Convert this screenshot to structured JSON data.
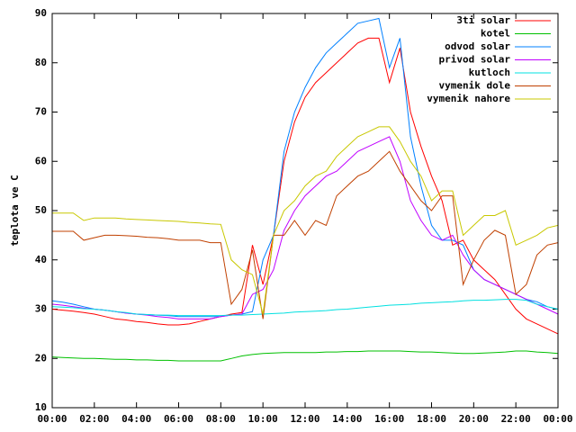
{
  "chart_data": {
    "type": "line",
    "ylabel": "teplota ve C",
    "x": [
      0,
      0.5,
      1,
      1.5,
      2,
      2.5,
      3,
      3.5,
      4,
      4.5,
      5,
      5.5,
      6,
      6.5,
      7,
      7.5,
      8,
      8.5,
      9,
      9.5,
      10,
      10.5,
      11,
      11.5,
      12,
      12.5,
      13,
      13.5,
      14,
      14.5,
      15,
      15.5,
      16,
      16.5,
      17,
      17.5,
      18,
      18.5,
      19,
      19.5,
      20,
      20.5,
      21,
      21.5,
      22,
      22.5,
      23,
      23.5,
      24
    ],
    "xlim": [
      0,
      24
    ],
    "xticks": [
      {
        "value": 0,
        "label": "00:00"
      },
      {
        "value": 2,
        "label": "02:00"
      },
      {
        "value": 4,
        "label": "04:00"
      },
      {
        "value": 6,
        "label": "06:00"
      },
      {
        "value": 8,
        "label": "08:00"
      },
      {
        "value": 10,
        "label": "10:00"
      },
      {
        "value": 12,
        "label": "12:00"
      },
      {
        "value": 14,
        "label": "14:00"
      },
      {
        "value": 16,
        "label": "16:00"
      },
      {
        "value": 18,
        "label": "18:00"
      },
      {
        "value": 20,
        "label": "20:00"
      },
      {
        "value": 22,
        "label": "22:00"
      },
      {
        "value": 24,
        "label": "00:00"
      }
    ],
    "ylim": [
      10,
      90
    ],
    "yticks": [
      10,
      20,
      30,
      40,
      50,
      60,
      70,
      80,
      90
    ],
    "grid": false,
    "legend": "top-right",
    "series": [
      {
        "name": "3ti solar",
        "color": "#ff0000",
        "values": [
          30,
          29.8,
          29.6,
          29.3,
          29,
          28.5,
          28,
          27.8,
          27.5,
          27.3,
          27,
          26.8,
          26.8,
          27,
          27.5,
          28,
          28.5,
          29,
          29.3,
          43,
          35,
          45,
          60,
          68,
          73,
          76,
          78,
          80,
          82,
          84,
          85,
          85,
          76,
          83,
          70,
          63,
          57,
          52,
          43,
          44,
          40,
          38,
          36,
          33,
          30,
          28,
          27,
          26,
          25
        ]
      },
      {
        "name": "kotel",
        "color": "#00c000",
        "values": [
          20.3,
          20.2,
          20.1,
          20,
          20,
          19.9,
          19.8,
          19.8,
          19.7,
          19.7,
          19.6,
          19.6,
          19.5,
          19.5,
          19.5,
          19.5,
          19.5,
          20,
          20.5,
          20.8,
          21,
          21.1,
          21.2,
          21.2,
          21.2,
          21.2,
          21.3,
          21.3,
          21.4,
          21.4,
          21.5,
          21.5,
          21.5,
          21.5,
          21.4,
          21.3,
          21.3,
          21.2,
          21.1,
          21,
          21,
          21.1,
          21.2,
          21.3,
          21.5,
          21.5,
          21.3,
          21.2,
          21
        ]
      },
      {
        "name": "odvod solar",
        "color": "#0080ff",
        "values": [
          31.7,
          31.4,
          31,
          30.5,
          30,
          29.8,
          29.5,
          29.2,
          29,
          28.9,
          28.8,
          28.7,
          28.5,
          28.5,
          28.5,
          28.5,
          28.5,
          28.8,
          29,
          29.5,
          40,
          45,
          62,
          70,
          75,
          79,
          82,
          84,
          86,
          88,
          88.5,
          89,
          79,
          85,
          65,
          55,
          47,
          44,
          44,
          43,
          38,
          36,
          35,
          34,
          33,
          32,
          31.5,
          30.5,
          30
        ]
      },
      {
        "name": "privod solar",
        "color": "#c000ff",
        "values": [
          31,
          30.8,
          30.5,
          30.2,
          30,
          29.8,
          29.5,
          29.2,
          29,
          28.8,
          28.5,
          28.3,
          28,
          28,
          28,
          28,
          28.5,
          28.8,
          29,
          33,
          34,
          38,
          46,
          50,
          53,
          55,
          57,
          58,
          60,
          62,
          63,
          64,
          65,
          60,
          52,
          48,
          45,
          44,
          45,
          41,
          38,
          36,
          35,
          34,
          33,
          32,
          31,
          30,
          29
        ]
      },
      {
        "name": "kutloch",
        "color": "#00e0e0",
        "values": [
          30.5,
          30.4,
          30.3,
          30.1,
          30,
          29.8,
          29.5,
          29.3,
          29,
          28.9,
          28.8,
          28.8,
          28.7,
          28.7,
          28.7,
          28.7,
          28.7,
          28.8,
          28.8,
          28.9,
          29,
          29.1,
          29.2,
          29.4,
          29.5,
          29.6,
          29.7,
          29.9,
          30,
          30.2,
          30.4,
          30.6,
          30.8,
          30.9,
          31,
          31.2,
          31.3,
          31.4,
          31.5,
          31.7,
          31.8,
          31.8,
          31.9,
          32,
          32,
          31.8,
          31,
          30.5,
          30
        ]
      },
      {
        "name": "vymenik dole",
        "color": "#c04000",
        "values": [
          45.8,
          45.8,
          45.8,
          44,
          44.5,
          45,
          45,
          44.9,
          44.8,
          44.6,
          44.5,
          44.3,
          44,
          44,
          44,
          43.5,
          43.5,
          31,
          34,
          42,
          28,
          45,
          45,
          48,
          45,
          48,
          47,
          53,
          55,
          57,
          58,
          60,
          62,
          58,
          55,
          52,
          50,
          53,
          53,
          35,
          40,
          44,
          46,
          45,
          33,
          35,
          41,
          43,
          43.5
        ]
      },
      {
        "name": "vymenik nahore",
        "color": "#c8c800",
        "values": [
          49.5,
          49.5,
          49.5,
          48,
          48.5,
          48.5,
          48.5,
          48.3,
          48.2,
          48.1,
          48,
          47.9,
          47.8,
          47.6,
          47.5,
          47.3,
          47.2,
          40,
          38,
          37,
          29,
          45,
          50,
          52,
          55,
          57,
          58,
          61,
          63,
          65,
          66,
          67,
          67,
          64,
          60,
          57,
          52,
          54,
          54,
          45,
          47,
          49,
          49,
          50,
          43,
          44,
          45,
          46.5,
          47
        ]
      }
    ]
  }
}
